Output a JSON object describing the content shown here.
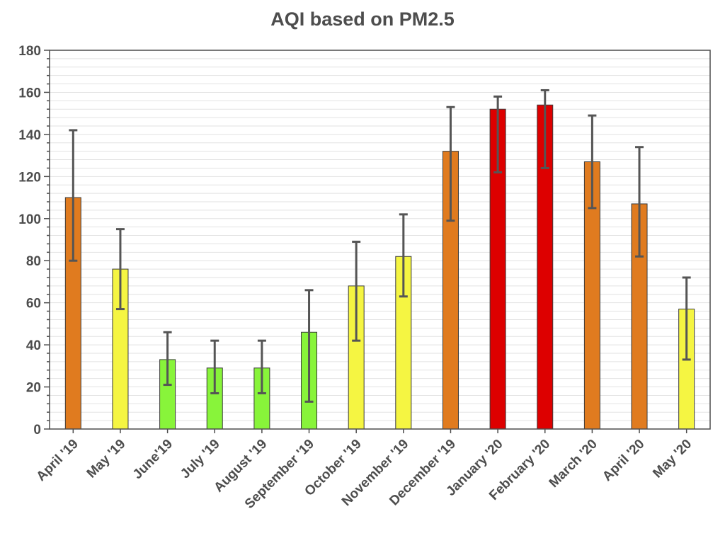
{
  "chart_data": {
    "type": "bar",
    "title": "AQI based on PM2.5",
    "xlabel": "",
    "ylabel": "",
    "ylim": [
      0,
      180
    ],
    "yticks": [
      "0",
      "20",
      "40",
      "60",
      "80",
      "100",
      "120",
      "140",
      "160",
      "180"
    ],
    "grid": true,
    "legend": "none",
    "categories": [
      "April '19",
      "May '19",
      "June'19",
      "July '19",
      "August '19",
      "September '19",
      "October '19",
      "November '19",
      "December '19",
      "January '20",
      "February '20",
      "March '20",
      "April '20",
      "May '20"
    ],
    "series": [
      {
        "values": [
          110,
          76,
          33,
          29,
          29,
          46,
          68,
          82,
          132,
          152,
          154,
          127,
          107,
          57
        ],
        "error_low": [
          80,
          57,
          21,
          17,
          17,
          13,
          42,
          63,
          99,
          122,
          124,
          105,
          82,
          33
        ],
        "error_high": [
          142,
          95,
          46,
          42,
          42,
          66,
          89,
          102,
          153,
          158,
          161,
          149,
          134,
          72
        ],
        "bar_colors": [
          "#e07b1f",
          "#f5f542",
          "#88f43a",
          "#88f43a",
          "#88f43a",
          "#88f43a",
          "#f5f542",
          "#f5f542",
          "#e07b1f",
          "#dd0000",
          "#dd0000",
          "#e07b1f",
          "#e07b1f",
          "#f5f542"
        ]
      }
    ],
    "colors": {
      "text": "#4d4d4d",
      "axis": "#4d4d4d",
      "grid": "#e2e2e2",
      "error_bar": "#555555",
      "bar_outline": "#3a3a3a"
    }
  }
}
